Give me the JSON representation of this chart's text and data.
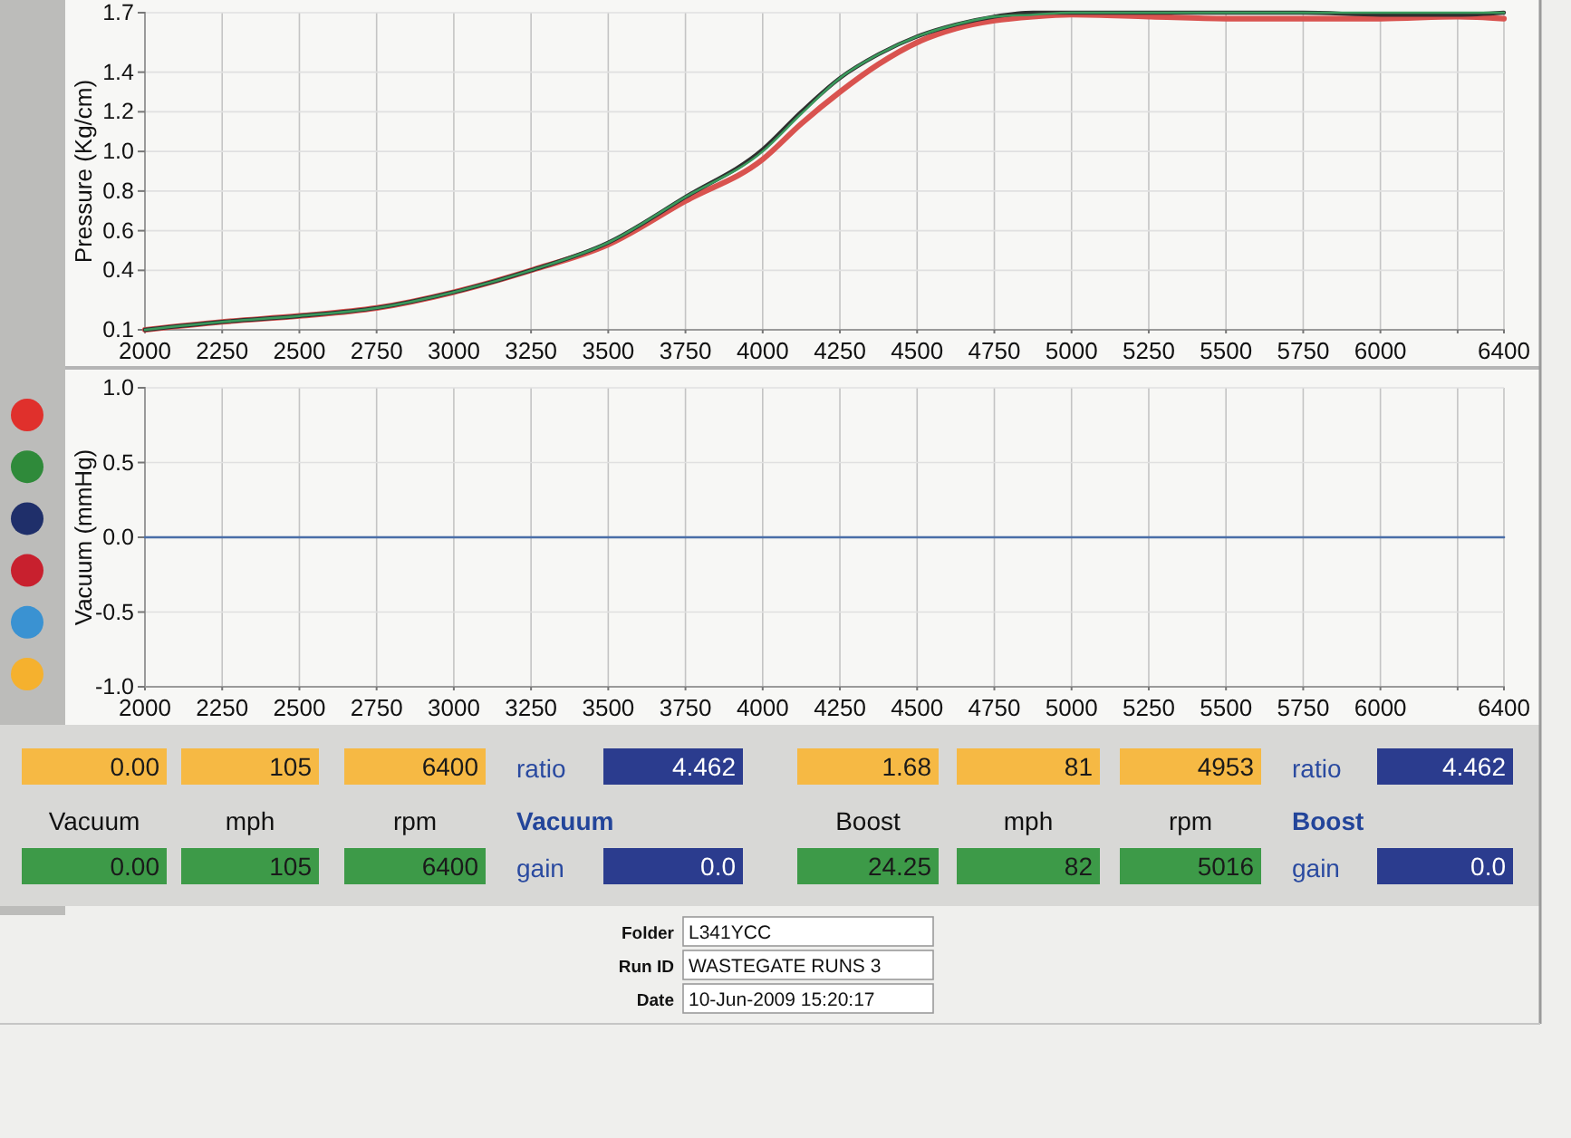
{
  "chart_data": [
    {
      "type": "line",
      "ylabel": "Pressure (Kg/cm)",
      "x": [
        2000,
        2250,
        2500,
        2750,
        3000,
        3250,
        3500,
        3750,
        4000,
        4125,
        4250,
        4375,
        4500,
        4625,
        4750,
        4875,
        5000,
        5250,
        5500,
        5750,
        6000,
        6250,
        6400
      ],
      "series": [
        {
          "color": "#d9534f",
          "values": [
            0.1,
            0.14,
            0.17,
            0.21,
            0.29,
            0.4,
            0.53,
            0.75,
            0.96,
            1.14,
            1.3,
            1.44,
            1.55,
            1.62,
            1.66,
            1.68,
            1.69,
            1.68,
            1.67,
            1.67,
            1.67,
            1.68,
            1.67
          ]
        },
        {
          "color": "#2f2f2f",
          "values": [
            0.1,
            0.14,
            0.17,
            0.21,
            0.29,
            0.4,
            0.54,
            0.77,
            1.01,
            1.2,
            1.37,
            1.49,
            1.58,
            1.64,
            1.68,
            1.7,
            1.7,
            1.7,
            1.7,
            1.7,
            1.69,
            1.69,
            1.7
          ]
        },
        {
          "color": "#3a9a5c",
          "values": [
            0.1,
            0.14,
            0.17,
            0.21,
            0.29,
            0.4,
            0.54,
            0.77,
            1.0,
            1.19,
            1.37,
            1.49,
            1.58,
            1.64,
            1.68,
            1.69,
            1.7,
            1.7,
            1.7,
            1.7,
            1.7,
            1.7,
            1.7
          ]
        }
      ],
      "xlim": [
        2000,
        6400
      ],
      "xticks": [
        2000,
        2250,
        2500,
        2750,
        3000,
        3250,
        3500,
        3750,
        4000,
        4250,
        4500,
        4750,
        5000,
        5250,
        5500,
        5750,
        6000,
        {
          "value": 6250,
          "label": null
        },
        6400
      ],
      "ylim": [
        0.1,
        1.7
      ],
      "yticks": [
        0.1,
        0.4,
        0.6,
        0.8,
        {
          "value": 1,
          "label": "1.0"
        },
        1.2,
        1.4,
        1.7
      ],
      "grid": true
    },
    {
      "type": "line",
      "ylabel": "Vacuum (mmHg)",
      "x": [
        2000,
        2250,
        2500,
        2750,
        3000,
        3250,
        3500,
        3750,
        4000,
        4250,
        4500,
        4750,
        5000,
        5250,
        5500,
        5750,
        6000,
        6250,
        6400
      ],
      "series": [
        {
          "color": "#4a6ea8",
          "values": [
            0,
            0,
            0,
            0,
            0,
            0,
            0,
            0,
            0,
            0,
            0,
            0,
            0,
            0,
            0,
            0,
            0,
            0,
            0
          ]
        }
      ],
      "xlim": [
        2000,
        6400
      ],
      "xticks": [
        2000,
        2250,
        2500,
        2750,
        3000,
        3250,
        3500,
        3750,
        4000,
        4250,
        4500,
        4750,
        5000,
        5250,
        5500,
        5750,
        6000,
        {
          "value": 6250,
          "label": null
        },
        6400
      ],
      "ylim": [
        -1,
        1
      ],
      "yticks": [
        {
          "value": -1,
          "label": "-1.0"
        },
        -0.5,
        {
          "value": 0,
          "label": "0.0"
        },
        0.5,
        {
          "value": 1,
          "label": "1.0"
        }
      ],
      "grid": true
    },
    {
      "type": "other",
      "categories": [
        "Vacuum",
        "mph",
        "rpm",
        "Vacuum",
        "Boost",
        "mph",
        "rpm",
        "Boost"
      ],
      "series": [
        {
          "values": [
            0,
            105,
            6400,
            4.462,
            1.68,
            81,
            4953,
            4.462
          ],
          "value_labels": [
            "0.00",
            "105",
            "6400",
            "4.462",
            "1.68",
            "81",
            "4953",
            "4.462"
          ],
          "colors": [
            "#f6b944",
            "#f6b944",
            "#f6b944",
            "#2b3c8e",
            "#f6b944",
            "#f6b944",
            "#f6b944",
            "#2b3c8e"
          ]
        },
        {
          "values": [
            0,
            105,
            6400,
            0,
            24.25,
            82,
            5016,
            0
          ],
          "value_labels": [
            "0.00",
            "105",
            "6400",
            "0.0",
            "24.25",
            "82",
            "5016",
            "0.0"
          ],
          "colors": [
            "#3d9a48",
            "#3d9a48",
            "#3d9a48",
            "#2b3c8e",
            "#3d9a48",
            "#3d9a48",
            "#3d9a48",
            "#2b3c8e"
          ]
        }
      ],
      "annotations": [
        "ratio",
        "gain",
        "ratio",
        "gain",
        "Folder",
        "L341YCC",
        "Run ID",
        "WASTEGATE RUNS 3",
        "Date",
        "10-Jun-2009 15:20:17"
      ]
    }
  ]
}
